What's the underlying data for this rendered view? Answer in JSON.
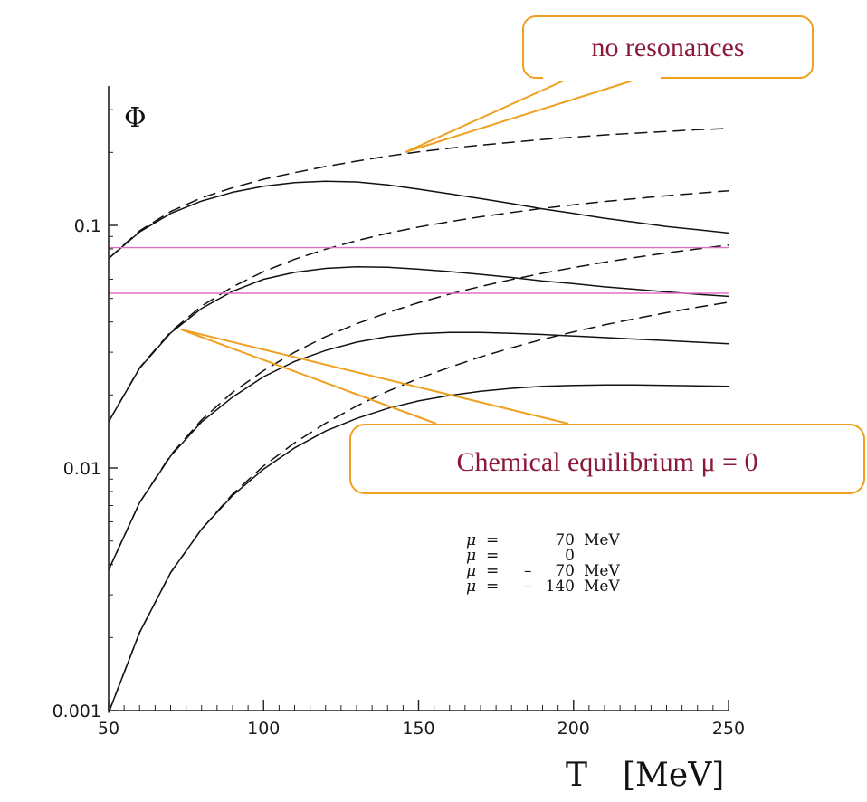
{
  "chart_data": {
    "type": "line",
    "ylabel": "Φ",
    "xlabel": "T [MeV]",
    "x_title_symbol": "T",
    "x_title_unit": "[MeV]",
    "xlim": [
      50,
      250
    ],
    "ylim": [
      0.001,
      0.4
    ],
    "y_scale": "log",
    "x_ticks": [
      50,
      100,
      150,
      200,
      250
    ],
    "y_ticks": [
      {
        "value": 0.001,
        "label": "0.001"
      },
      {
        "value": 0.01,
        "label": "0.01"
      },
      {
        "value": 0.1,
        "label": "0.1"
      }
    ],
    "series": [
      {
        "style": "solid",
        "x": [
          50,
          60,
          70,
          80,
          90,
          100,
          110,
          120,
          130,
          140,
          150,
          160,
          170,
          180,
          190,
          200,
          210,
          220,
          230,
          240,
          250
        ],
        "y": [
          0.073,
          0.094,
          0.112,
          0.126,
          0.137,
          0.145,
          0.15,
          0.152,
          0.151,
          0.147,
          0.141,
          0.135,
          0.129,
          0.123,
          0.117,
          0.112,
          0.107,
          0.103,
          0.099,
          0.096,
          0.093
        ]
      },
      {
        "style": "solid",
        "x": [
          50,
          60,
          70,
          80,
          90,
          100,
          110,
          120,
          130,
          140,
          150,
          160,
          170,
          180,
          190,
          200,
          210,
          220,
          230,
          240,
          250
        ],
        "y": [
          0.0155,
          0.0258,
          0.036,
          0.0455,
          0.0535,
          0.06,
          0.064,
          0.0665,
          0.0675,
          0.0672,
          0.066,
          0.0645,
          0.0628,
          0.061,
          0.059,
          0.0575,
          0.0558,
          0.0545,
          0.0532,
          0.052,
          0.051
        ]
      },
      {
        "style": "solid",
        "x": [
          50,
          60,
          70,
          80,
          90,
          100,
          110,
          120,
          130,
          140,
          150,
          160,
          170,
          180,
          190,
          200,
          210,
          220,
          230,
          240,
          250
        ],
        "y": [
          0.0038,
          0.0072,
          0.0112,
          0.0155,
          0.0196,
          0.0238,
          0.0275,
          0.0305,
          0.033,
          0.0348,
          0.0358,
          0.0362,
          0.0362,
          0.0359,
          0.0355,
          0.035,
          0.0345,
          0.034,
          0.0335,
          0.033,
          0.0325
        ]
      },
      {
        "style": "solid",
        "x": [
          50,
          60,
          70,
          80,
          90,
          100,
          110,
          120,
          130,
          140,
          150,
          160,
          170,
          180,
          190,
          200,
          210,
          220,
          230,
          240,
          250
        ],
        "y": [
          0.00098,
          0.0021,
          0.0037,
          0.0056,
          0.0077,
          0.0099,
          0.0121,
          0.0142,
          0.016,
          0.0176,
          0.0189,
          0.0199,
          0.0207,
          0.0213,
          0.0217,
          0.0219,
          0.022,
          0.022,
          0.0219,
          0.0218,
          0.0217
        ]
      },
      {
        "style": "dashed",
        "x": [
          50,
          60,
          70,
          80,
          90,
          100,
          110,
          120,
          130,
          140,
          150,
          160,
          170,
          180,
          190,
          200,
          210,
          220,
          230,
          240,
          250
        ],
        "y": [
          0.073,
          0.095,
          0.114,
          0.13,
          0.143,
          0.155,
          0.165,
          0.175,
          0.184,
          0.193,
          0.201,
          0.208,
          0.214,
          0.22,
          0.226,
          0.231,
          0.236,
          0.24,
          0.244,
          0.248,
          0.251
        ]
      },
      {
        "style": "dashed",
        "x": [
          50,
          60,
          70,
          80,
          90,
          100,
          110,
          120,
          130,
          140,
          150,
          160,
          170,
          180,
          190,
          200,
          210,
          220,
          230,
          240,
          250
        ],
        "y": [
          0.0155,
          0.0259,
          0.0364,
          0.0465,
          0.0558,
          0.0645,
          0.0725,
          0.0798,
          0.0865,
          0.0928,
          0.0985,
          0.1036,
          0.1085,
          0.113,
          0.1175,
          0.1215,
          0.1255,
          0.129,
          0.1325,
          0.1357,
          0.139
        ]
      },
      {
        "style": "dashed",
        "x": [
          50,
          60,
          70,
          80,
          90,
          100,
          110,
          120,
          130,
          140,
          150,
          160,
          170,
          180,
          190,
          200,
          210,
          220,
          230,
          240,
          250
        ],
        "y": [
          0.0038,
          0.0072,
          0.0113,
          0.0158,
          0.0205,
          0.0252,
          0.03,
          0.0348,
          0.0393,
          0.0437,
          0.048,
          0.0521,
          0.056,
          0.0598,
          0.0635,
          0.067,
          0.0705,
          0.0738,
          0.077,
          0.08,
          0.083
        ]
      },
      {
        "style": "dashed",
        "x": [
          50,
          60,
          70,
          80,
          90,
          100,
          110,
          120,
          130,
          140,
          150,
          160,
          170,
          180,
          190,
          200,
          210,
          220,
          230,
          240,
          250
        ],
        "y": [
          0.00098,
          0.0021,
          0.0037,
          0.0056,
          0.0078,
          0.0102,
          0.0127,
          0.0153,
          0.018,
          0.0207,
          0.0234,
          0.026,
          0.0287,
          0.0313,
          0.0339,
          0.0364,
          0.0389,
          0.0413,
          0.0437,
          0.046,
          0.0482
        ]
      }
    ],
    "hlines": [
      0.081,
      0.0525
    ],
    "legend_lines": [
      {
        "mu": "μ",
        "eq": "=",
        "sign": "",
        "value": "70",
        "unit": "MeV"
      },
      {
        "mu": "μ",
        "eq": "=",
        "sign": "",
        "value": "0",
        "unit": ""
      },
      {
        "mu": "μ",
        "eq": "=",
        "sign": "–",
        "value": "70",
        "unit": "MeV"
      },
      {
        "mu": "μ",
        "eq": "=",
        "sign": "–",
        "value": "140",
        "unit": "MeV"
      }
    ],
    "callouts": [
      {
        "text": "no resonances"
      },
      {
        "text": "Chemical equilibrium μ = 0"
      }
    ],
    "colors": {
      "curve": "#111111",
      "hline": "#e070c8",
      "callout_border": "#f0a020",
      "callout_fill": "#ffffff",
      "callout_text": "#8b1a3a"
    },
    "grid": false
  }
}
